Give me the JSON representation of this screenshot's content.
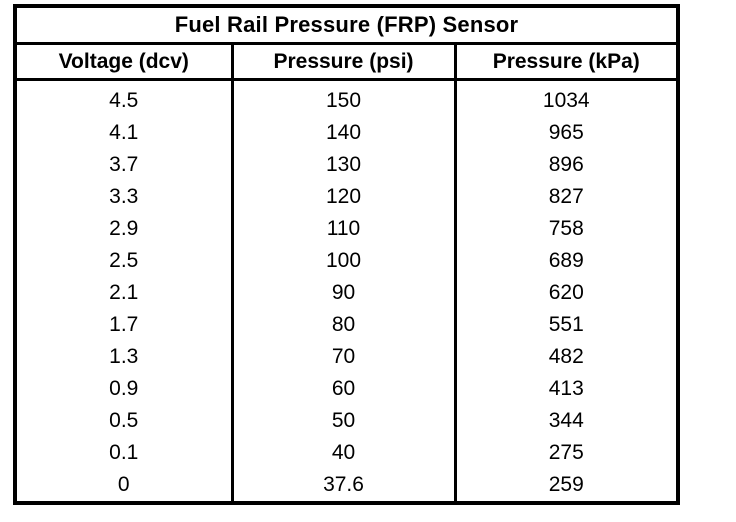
{
  "table": {
    "title": "Fuel Rail Pressure (FRP) Sensor",
    "columns": [
      "Voltage (dcv)",
      "Pressure (psi)",
      "Pressure (kPa)"
    ],
    "rows": [
      [
        "4.5",
        "150",
        "1034"
      ],
      [
        "4.1",
        "140",
        "965"
      ],
      [
        "3.7",
        "130",
        "896"
      ],
      [
        "3.3",
        "120",
        "827"
      ],
      [
        "2.9",
        "110",
        "758"
      ],
      [
        "2.5",
        "100",
        "689"
      ],
      [
        "2.1",
        "90",
        "620"
      ],
      [
        "1.7",
        "80",
        "551"
      ],
      [
        "1.3",
        "70",
        "482"
      ],
      [
        "0.9",
        "60",
        "413"
      ],
      [
        "0.5",
        "50",
        "344"
      ],
      [
        "0.1",
        "40",
        "275"
      ],
      [
        "0",
        "37.6",
        "259"
      ]
    ]
  },
  "colors": {
    "border": "#000000",
    "background": "#ffffff",
    "text": "#000000"
  }
}
